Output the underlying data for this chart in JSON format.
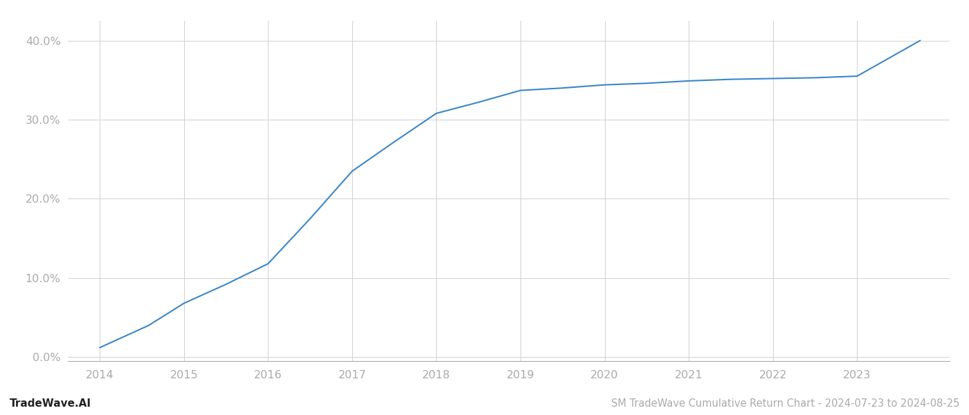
{
  "x_years": [
    2014.0,
    2014.58,
    2015.0,
    2015.5,
    2016.0,
    2016.5,
    2017.0,
    2017.5,
    2018.0,
    2018.5,
    2019.0,
    2019.5,
    2020.0,
    2020.5,
    2021.0,
    2021.5,
    2022.0,
    2022.5,
    2023.0,
    2023.75
  ],
  "y_values": [
    0.012,
    0.04,
    0.068,
    0.092,
    0.118,
    0.175,
    0.235,
    0.272,
    0.308,
    0.322,
    0.337,
    0.34,
    0.344,
    0.346,
    0.349,
    0.351,
    0.352,
    0.353,
    0.355,
    0.4
  ],
  "line_color": "#3a86c8",
  "line_width": 1.5,
  "title": "SM TradeWave Cumulative Return Chart - 2024-07-23 to 2024-08-25",
  "watermark": "TradeWave.AI",
  "background_color": "#ffffff",
  "grid_color": "#d0d0d0",
  "axis_color": "#aaaaaa",
  "tick_label_color": "#aaaaaa",
  "ylim": [
    -0.005,
    0.425
  ],
  "xlim": [
    2013.62,
    2024.1
  ],
  "yticks": [
    0.0,
    0.1,
    0.2,
    0.3,
    0.4
  ],
  "ytick_labels": [
    "0.0%",
    "10.0%",
    "20.0%",
    "30.0%",
    "40.0%"
  ],
  "xticks": [
    2014,
    2015,
    2016,
    2017,
    2018,
    2019,
    2020,
    2021,
    2022,
    2023
  ],
  "title_fontsize": 10.5,
  "watermark_fontsize": 11,
  "tick_fontsize": 11.5
}
